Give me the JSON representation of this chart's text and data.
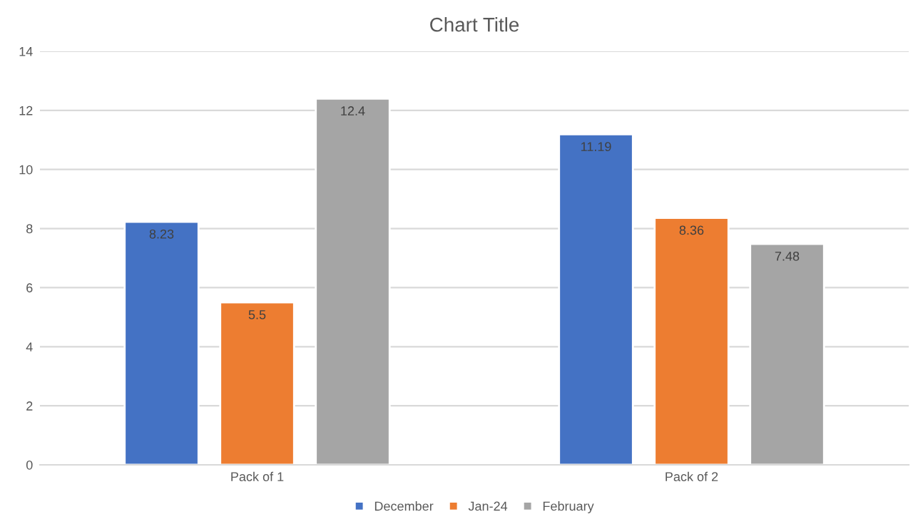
{
  "chart_data": {
    "type": "bar",
    "title": "Chart Title",
    "categories": [
      "Pack of 1",
      "Pack of 2"
    ],
    "series": [
      {
        "name": "December",
        "color": "#4472c4",
        "values": [
          8.23,
          11.19
        ]
      },
      {
        "name": "Jan-24",
        "color": "#ed7d31",
        "values": [
          5.5,
          8.36
        ]
      },
      {
        "name": "February",
        "color": "#a5a5a5",
        "values": [
          12.4,
          7.48
        ]
      }
    ],
    "ylim": [
      0,
      14
    ],
    "yticks": [
      0,
      2,
      4,
      6,
      8,
      10,
      12,
      14
    ],
    "grid": "y",
    "legend": "bottom",
    "data_labels": true
  }
}
